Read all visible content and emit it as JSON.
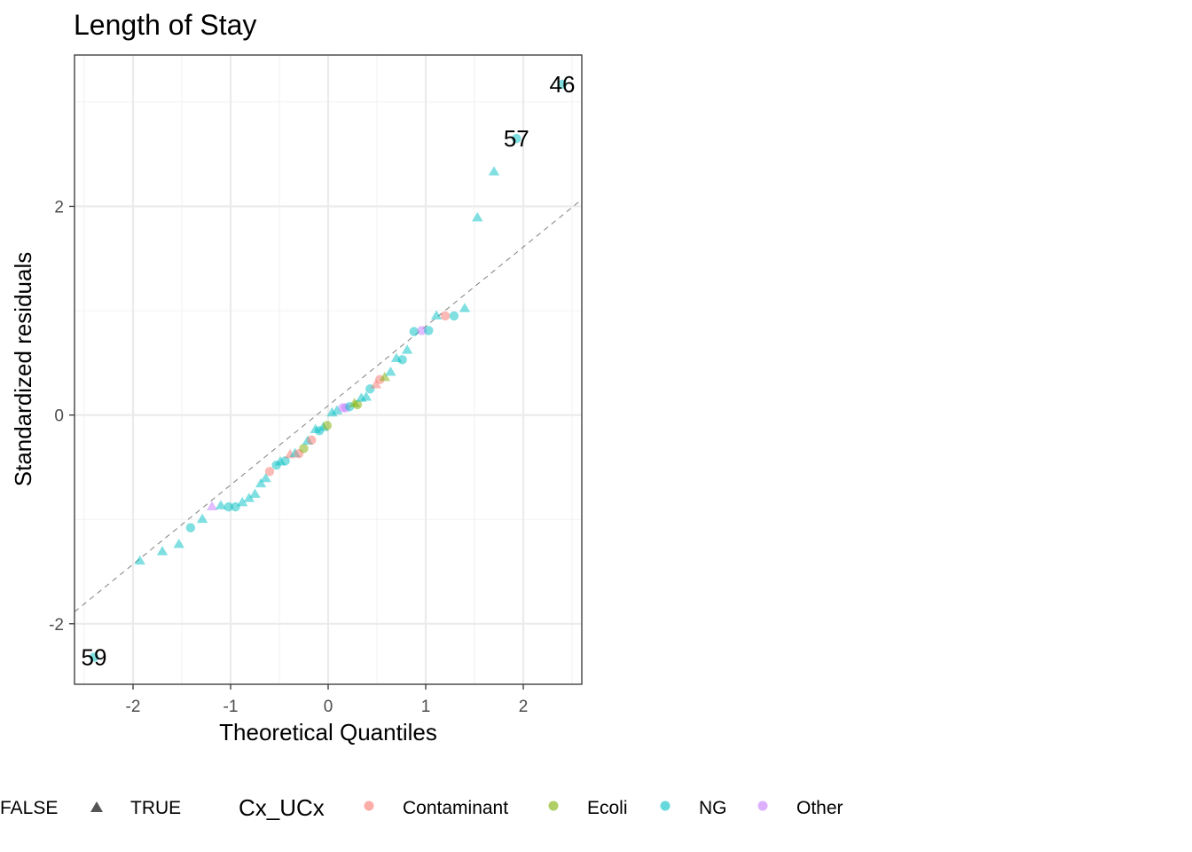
{
  "chart_data": {
    "type": "scatter",
    "title": "Length of Stay",
    "xlabel": "Theoretical Quantiles",
    "ylabel": "Standardized residuals",
    "xlim": [
      -2.6,
      2.6
    ],
    "ylim": [
      -2.58,
      3.45
    ],
    "x_ticks": [
      -2,
      -1,
      0,
      1,
      2
    ],
    "y_ticks": [
      -2,
      0,
      2
    ],
    "grid": true,
    "reference_line": {
      "slope": 0.76,
      "intercept": 0.09,
      "style": "dashed"
    },
    "shape_legend": {
      "title": "",
      "entries": [
        {
          "label": "FALSE",
          "shape": "circle"
        },
        {
          "label": "TRUE",
          "shape": "triangle"
        }
      ]
    },
    "color_legend": {
      "title": "Cx_UCx",
      "entries": [
        {
          "label": "Contaminant",
          "color": "#F8766D"
        },
        {
          "label": "Ecoli",
          "color": "#7CAE00"
        },
        {
          "label": "NG",
          "color": "#00BFC4"
        },
        {
          "label": "Other",
          "color": "#C77CFF"
        }
      ]
    },
    "legend_position": "bottom",
    "points": [
      {
        "x": -2.4,
        "y": -2.32,
        "group": "NG",
        "shape": "circle"
      },
      {
        "x": -1.93,
        "y": -1.4,
        "group": "NG",
        "shape": "triangle"
      },
      {
        "x": -1.7,
        "y": -1.31,
        "group": "NG",
        "shape": "triangle"
      },
      {
        "x": -1.53,
        "y": -1.24,
        "group": "NG",
        "shape": "triangle"
      },
      {
        "x": -1.41,
        "y": -1.08,
        "group": "NG",
        "shape": "circle"
      },
      {
        "x": -1.29,
        "y": -1.0,
        "group": "NG",
        "shape": "triangle"
      },
      {
        "x": -1.19,
        "y": -0.88,
        "group": "Other",
        "shape": "triangle"
      },
      {
        "x": -1.1,
        "y": -0.87,
        "group": "NG",
        "shape": "triangle"
      },
      {
        "x": -1.02,
        "y": -0.88,
        "group": "NG",
        "shape": "circle"
      },
      {
        "x": -0.95,
        "y": -0.88,
        "group": "NG",
        "shape": "circle"
      },
      {
        "x": -0.88,
        "y": -0.84,
        "group": "NG",
        "shape": "triangle"
      },
      {
        "x": -0.81,
        "y": -0.8,
        "group": "NG",
        "shape": "triangle"
      },
      {
        "x": -0.75,
        "y": -0.76,
        "group": "NG",
        "shape": "triangle"
      },
      {
        "x": -0.69,
        "y": -0.66,
        "group": "NG",
        "shape": "triangle"
      },
      {
        "x": -0.64,
        "y": -0.61,
        "group": "NG",
        "shape": "triangle"
      },
      {
        "x": -0.6,
        "y": -0.54,
        "group": "Contaminant",
        "shape": "circle"
      },
      {
        "x": -0.53,
        "y": -0.48,
        "group": "NG",
        "shape": "circle"
      },
      {
        "x": -0.49,
        "y": -0.45,
        "group": "NG",
        "shape": "triangle"
      },
      {
        "x": -0.44,
        "y": -0.44,
        "group": "NG",
        "shape": "circle"
      },
      {
        "x": -0.39,
        "y": -0.38,
        "group": "Contaminant",
        "shape": "triangle"
      },
      {
        "x": -0.34,
        "y": -0.37,
        "group": "NG",
        "shape": "triangle"
      },
      {
        "x": -0.3,
        "y": -0.37,
        "group": "Contaminant",
        "shape": "circle"
      },
      {
        "x": -0.25,
        "y": -0.32,
        "group": "Ecoli",
        "shape": "circle"
      },
      {
        "x": -0.21,
        "y": -0.25,
        "group": "NG",
        "shape": "triangle"
      },
      {
        "x": -0.17,
        "y": -0.24,
        "group": "Contaminant",
        "shape": "circle"
      },
      {
        "x": -0.13,
        "y": -0.14,
        "group": "NG",
        "shape": "triangle"
      },
      {
        "x": -0.09,
        "y": -0.15,
        "group": "NG",
        "shape": "circle"
      },
      {
        "x": -0.05,
        "y": -0.12,
        "group": "NG",
        "shape": "triangle"
      },
      {
        "x": -0.01,
        "y": -0.1,
        "group": "Ecoli",
        "shape": "circle"
      },
      {
        "x": 0.04,
        "y": 0.02,
        "group": "NG",
        "shape": "triangle"
      },
      {
        "x": 0.09,
        "y": 0.04,
        "group": "NG",
        "shape": "triangle"
      },
      {
        "x": 0.15,
        "y": 0.07,
        "group": "Other",
        "shape": "circle"
      },
      {
        "x": 0.18,
        "y": 0.07,
        "group": "Other",
        "shape": "circle"
      },
      {
        "x": 0.22,
        "y": 0.08,
        "group": "NG",
        "shape": "circle"
      },
      {
        "x": 0.27,
        "y": 0.11,
        "group": "Ecoli",
        "shape": "triangle"
      },
      {
        "x": 0.3,
        "y": 0.1,
        "group": "Ecoli",
        "shape": "circle"
      },
      {
        "x": 0.34,
        "y": 0.16,
        "group": "NG",
        "shape": "triangle"
      },
      {
        "x": 0.39,
        "y": 0.17,
        "group": "NG",
        "shape": "triangle"
      },
      {
        "x": 0.43,
        "y": 0.25,
        "group": "NG",
        "shape": "circle"
      },
      {
        "x": 0.49,
        "y": 0.29,
        "group": "Contaminant",
        "shape": "triangle"
      },
      {
        "x": 0.53,
        "y": 0.34,
        "group": "Contaminant",
        "shape": "circle"
      },
      {
        "x": 0.58,
        "y": 0.36,
        "group": "Ecoli",
        "shape": "triangle"
      },
      {
        "x": 0.64,
        "y": 0.41,
        "group": "NG",
        "shape": "triangle"
      },
      {
        "x": 0.7,
        "y": 0.54,
        "group": "NG",
        "shape": "triangle"
      },
      {
        "x": 0.76,
        "y": 0.53,
        "group": "NG",
        "shape": "circle"
      },
      {
        "x": 0.81,
        "y": 0.62,
        "group": "NG",
        "shape": "triangle"
      },
      {
        "x": 0.88,
        "y": 0.8,
        "group": "NG",
        "shape": "circle"
      },
      {
        "x": 0.96,
        "y": 0.81,
        "group": "Other",
        "shape": "circle"
      },
      {
        "x": 1.03,
        "y": 0.81,
        "group": "NG",
        "shape": "circle"
      },
      {
        "x": 1.11,
        "y": 0.95,
        "group": "NG",
        "shape": "triangle"
      },
      {
        "x": 1.2,
        "y": 0.95,
        "group": "Contaminant",
        "shape": "circle"
      },
      {
        "x": 1.29,
        "y": 0.95,
        "group": "NG",
        "shape": "circle"
      },
      {
        "x": 1.4,
        "y": 1.02,
        "group": "NG",
        "shape": "triangle"
      },
      {
        "x": 1.53,
        "y": 1.89,
        "group": "NG",
        "shape": "triangle"
      },
      {
        "x": 1.7,
        "y": 2.33,
        "group": "NG",
        "shape": "triangle"
      },
      {
        "x": 1.93,
        "y": 2.65,
        "group": "NG",
        "shape": "circle"
      },
      {
        "x": 2.4,
        "y": 3.17,
        "group": "NG",
        "shape": "circle"
      }
    ],
    "annotations": [
      {
        "text": "46",
        "x": 2.4,
        "y": 3.17
      },
      {
        "text": "57",
        "x": 1.93,
        "y": 2.65
      },
      {
        "text": "59",
        "x": -2.4,
        "y": -2.32
      }
    ]
  }
}
